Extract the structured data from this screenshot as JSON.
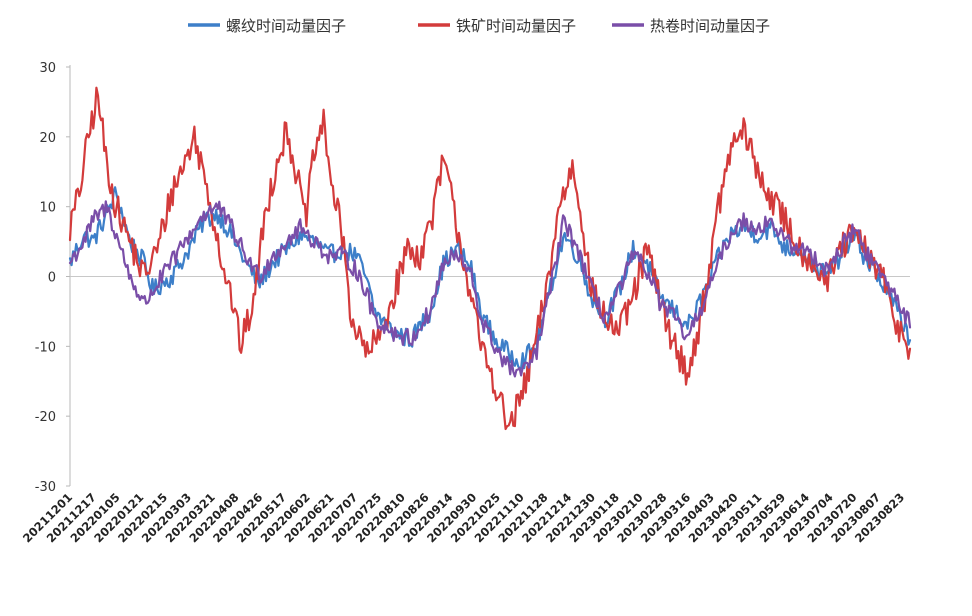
{
  "chart_data": {
    "type": "line",
    "title": "",
    "xlabel": "",
    "ylabel": "",
    "ylim": [
      -30,
      30
    ],
    "y_ticks": [
      "30",
      "20",
      "10",
      "0",
      "-10",
      "-20",
      "-30"
    ],
    "y_tick_values": [
      30,
      20,
      10,
      0,
      -10,
      -20,
      -30
    ],
    "x_tick_labels": [
      "20211201",
      "20211217",
      "20220105",
      "20220121",
      "20220215",
      "20220303",
      "20220321",
      "20220408",
      "20220426",
      "20220517",
      "20220602",
      "20220621",
      "20220707",
      "20220725",
      "20220810",
      "20220826",
      "20220914",
      "20220930",
      "20221025",
      "20221110",
      "20221128",
      "20221214",
      "20221230",
      "20230118",
      "20230210",
      "20230228",
      "20230316",
      "20230403",
      "20230420",
      "20230511",
      "20230529",
      "20230614",
      "20230704",
      "20230720",
      "20230807",
      "20230823"
    ],
    "legend_position": "top",
    "grid": false,
    "x_index_range": [
      0,
      182
    ],
    "series": [
      {
        "name": "螺纹时间动量因子",
        "color": "#3d7fc9",
        "anchors": [
          [
            0,
            2
          ],
          [
            3,
            6
          ],
          [
            5,
            5
          ],
          [
            8,
            9
          ],
          [
            10,
            12
          ],
          [
            13,
            5
          ],
          [
            16,
            2
          ],
          [
            18,
            -2
          ],
          [
            22,
            0
          ],
          [
            25,
            3
          ],
          [
            29,
            8
          ],
          [
            32,
            9
          ],
          [
            35,
            6
          ],
          [
            38,
            2
          ],
          [
            41,
            -1
          ],
          [
            44,
            2
          ],
          [
            47,
            4
          ],
          [
            50,
            6
          ],
          [
            53,
            5
          ],
          [
            56,
            3
          ],
          [
            59,
            4
          ],
          [
            62,
            3
          ],
          [
            64,
            0
          ],
          [
            66,
            -5
          ],
          [
            70,
            -8
          ],
          [
            74,
            -9
          ],
          [
            78,
            -5
          ],
          [
            81,
            2
          ],
          [
            84,
            4
          ],
          [
            87,
            1
          ],
          [
            89,
            -5
          ],
          [
            92,
            -9
          ],
          [
            95,
            -11
          ],
          [
            98,
            -12
          ],
          [
            101,
            -10
          ],
          [
            104,
            -2
          ],
          [
            107,
            6
          ],
          [
            110,
            3
          ],
          [
            113,
            -3
          ],
          [
            116,
            -6
          ],
          [
            119,
            -2
          ],
          [
            122,
            4
          ],
          [
            125,
            2
          ],
          [
            128,
            -3
          ],
          [
            131,
            -5
          ],
          [
            134,
            -7
          ],
          [
            137,
            -3
          ],
          [
            140,
            2
          ],
          [
            143,
            6
          ],
          [
            146,
            7
          ],
          [
            149,
            6
          ],
          [
            152,
            7
          ],
          [
            155,
            4
          ],
          [
            158,
            4
          ],
          [
            161,
            2
          ],
          [
            164,
            0
          ],
          [
            167,
            3
          ],
          [
            170,
            6
          ],
          [
            172,
            3
          ],
          [
            175,
            0
          ],
          [
            177,
            -2
          ],
          [
            180,
            -6
          ],
          [
            182,
            -9
          ]
        ]
      },
      {
        "name": "铁矿时间动量因子",
        "color": "#d33b3b",
        "anchors": [
          [
            0,
            7
          ],
          [
            2,
            12
          ],
          [
            4,
            20
          ],
          [
            6,
            26
          ],
          [
            8,
            16
          ],
          [
            10,
            10
          ],
          [
            13,
            5
          ],
          [
            16,
            0
          ],
          [
            19,
            4
          ],
          [
            22,
            12
          ],
          [
            24,
            15
          ],
          [
            27,
            20
          ],
          [
            30,
            12
          ],
          [
            33,
            2
          ],
          [
            35,
            -3
          ],
          [
            37,
            -10
          ],
          [
            40,
            -3
          ],
          [
            42,
            8
          ],
          [
            45,
            17
          ],
          [
            47,
            21
          ],
          [
            49,
            15
          ],
          [
            51,
            8
          ],
          [
            53,
            18
          ],
          [
            55,
            22
          ],
          [
            57,
            12
          ],
          [
            59,
            6
          ],
          [
            61,
            -6
          ],
          [
            64,
            -11
          ],
          [
            67,
            -9
          ],
          [
            70,
            -3
          ],
          [
            73,
            4
          ],
          [
            76,
            3
          ],
          [
            79,
            10
          ],
          [
            81,
            17
          ],
          [
            83,
            10
          ],
          [
            86,
            0
          ],
          [
            89,
            -10
          ],
          [
            92,
            -15
          ],
          [
            95,
            -22
          ],
          [
            98,
            -17
          ],
          [
            100,
            -12
          ],
          [
            103,
            -3
          ],
          [
            106,
            10
          ],
          [
            109,
            16
          ],
          [
            111,
            8
          ],
          [
            113,
            -2
          ],
          [
            116,
            -6
          ],
          [
            119,
            -8
          ],
          [
            122,
            -3
          ],
          [
            125,
            4
          ],
          [
            128,
            -4
          ],
          [
            131,
            -10
          ],
          [
            134,
            -14
          ],
          [
            137,
            -5
          ],
          [
            140,
            8
          ],
          [
            143,
            18
          ],
          [
            146,
            21
          ],
          [
            149,
            15
          ],
          [
            152,
            11
          ],
          [
            155,
            8
          ],
          [
            158,
            4
          ],
          [
            161,
            2
          ],
          [
            164,
            -1
          ],
          [
            167,
            4
          ],
          [
            170,
            6
          ],
          [
            173,
            3
          ],
          [
            176,
            0
          ],
          [
            178,
            -5
          ],
          [
            180,
            -8
          ],
          [
            182,
            -10
          ]
        ]
      },
      {
        "name": "热卷时间动量因子",
        "color": "#7a4ea8",
        "anchors": [
          [
            0,
            2
          ],
          [
            3,
            5
          ],
          [
            5,
            8
          ],
          [
            8,
            10
          ],
          [
            10,
            6
          ],
          [
            13,
            0
          ],
          [
            16,
            -4
          ],
          [
            18,
            -2
          ],
          [
            22,
            2
          ],
          [
            25,
            5
          ],
          [
            29,
            9
          ],
          [
            32,
            10
          ],
          [
            35,
            7
          ],
          [
            38,
            3
          ],
          [
            41,
            0
          ],
          [
            44,
            3
          ],
          [
            47,
            5
          ],
          [
            50,
            7
          ],
          [
            53,
            5
          ],
          [
            56,
            3
          ],
          [
            59,
            3
          ],
          [
            62,
            1
          ],
          [
            64,
            -2
          ],
          [
            66,
            -6
          ],
          [
            70,
            -8
          ],
          [
            74,
            -9
          ],
          [
            78,
            -5
          ],
          [
            81,
            2
          ],
          [
            84,
            3
          ],
          [
            87,
            0
          ],
          [
            89,
            -6
          ],
          [
            92,
            -10
          ],
          [
            95,
            -13
          ],
          [
            98,
            -14
          ],
          [
            101,
            -11
          ],
          [
            104,
            -2
          ],
          [
            107,
            8
          ],
          [
            110,
            4
          ],
          [
            113,
            -2
          ],
          [
            116,
            -6
          ],
          [
            119,
            -2
          ],
          [
            122,
            3
          ],
          [
            125,
            1
          ],
          [
            128,
            -4
          ],
          [
            131,
            -6
          ],
          [
            134,
            -9
          ],
          [
            137,
            -4
          ],
          [
            140,
            1
          ],
          [
            143,
            6
          ],
          [
            146,
            8
          ],
          [
            149,
            7
          ],
          [
            152,
            8
          ],
          [
            155,
            5
          ],
          [
            158,
            4
          ],
          [
            161,
            3
          ],
          [
            164,
            1
          ],
          [
            167,
            4
          ],
          [
            170,
            7
          ],
          [
            172,
            4
          ],
          [
            175,
            1
          ],
          [
            177,
            -1
          ],
          [
            180,
            -4
          ],
          [
            182,
            -7
          ]
        ]
      }
    ]
  }
}
